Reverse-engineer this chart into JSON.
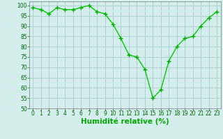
{
  "x": [
    0,
    1,
    2,
    3,
    4,
    5,
    6,
    7,
    8,
    9,
    10,
    11,
    12,
    13,
    14,
    15,
    16,
    17,
    18,
    19,
    20,
    21,
    22,
    23
  ],
  "y": [
    99,
    98,
    96,
    99,
    98,
    98,
    99,
    100,
    97,
    96,
    91,
    84,
    76,
    75,
    69,
    55,
    59,
    73,
    80,
    84,
    85,
    90,
    94,
    97
  ],
  "line_color": "#00cc00",
  "marker_color": "#00aa00",
  "bg_color": "#d4eeed",
  "grid_color": "#aacccc",
  "xlabel": "Humidité relative (%)",
  "xlabel_color": "#00aa00",
  "ylim": [
    50,
    102
  ],
  "yticks": [
    50,
    55,
    60,
    65,
    70,
    75,
    80,
    85,
    90,
    95,
    100
  ],
  "xticks": [
    0,
    1,
    2,
    3,
    4,
    5,
    6,
    7,
    8,
    9,
    10,
    11,
    12,
    13,
    14,
    15,
    16,
    17,
    18,
    19,
    20,
    21,
    22,
    23
  ],
  "tick_label_fontsize": 5.5,
  "xlabel_fontsize": 7.5,
  "marker_size": 2.5,
  "line_width": 1.0
}
